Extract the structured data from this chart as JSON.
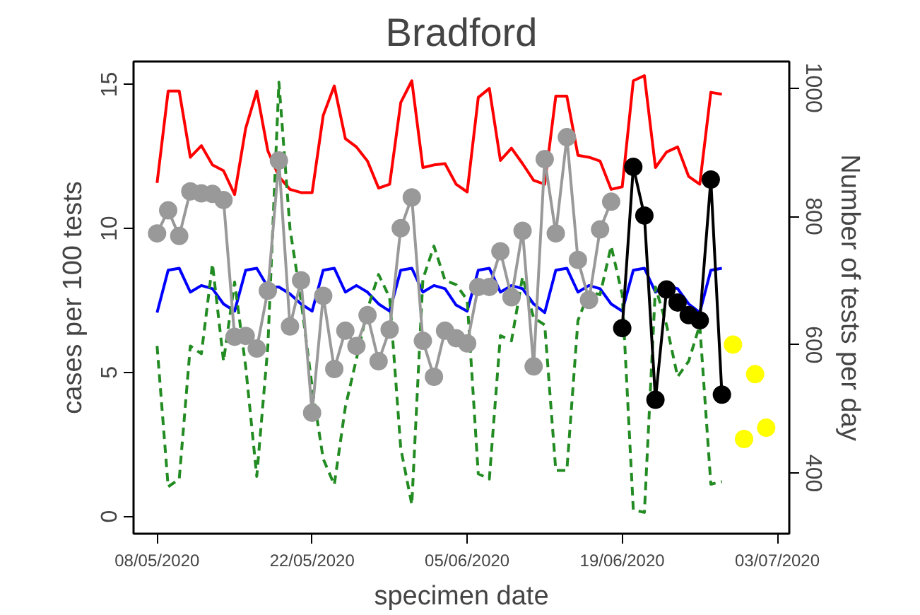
{
  "chart_data": {
    "type": "line",
    "title": "Bradford",
    "xlabel": "specimen date",
    "ylabel": "cases per 100 tests",
    "y2label": "Number of tests per day",
    "x": [
      "2020-05-08",
      "2020-05-09",
      "2020-05-10",
      "2020-05-11",
      "2020-05-12",
      "2020-05-13",
      "2020-05-14",
      "2020-05-15",
      "2020-05-16",
      "2020-05-17",
      "2020-05-18",
      "2020-05-19",
      "2020-05-20",
      "2020-05-21",
      "2020-05-22",
      "2020-05-23",
      "2020-05-24",
      "2020-05-25",
      "2020-05-26",
      "2020-05-27",
      "2020-05-28",
      "2020-05-29",
      "2020-05-30",
      "2020-05-31",
      "2020-06-01",
      "2020-06-02",
      "2020-06-03",
      "2020-06-04",
      "2020-06-05",
      "2020-06-06",
      "2020-06-07",
      "2020-06-08",
      "2020-06-09",
      "2020-06-10",
      "2020-06-11",
      "2020-06-12",
      "2020-06-13",
      "2020-06-14",
      "2020-06-15",
      "2020-06-16",
      "2020-06-17",
      "2020-06-18",
      "2020-06-19",
      "2020-06-20",
      "2020-06-21",
      "2020-06-22",
      "2020-06-23",
      "2020-06-24",
      "2020-06-25",
      "2020-06-26",
      "2020-06-27",
      "2020-06-28"
    ],
    "xlim": [
      "2020-05-05T21:00",
      "2020-07-04T02:00"
    ],
    "xticks": [
      {
        "value": "2020-05-08",
        "label": "08/05/2020"
      },
      {
        "value": "2020-05-22",
        "label": "22/05/2020"
      },
      {
        "value": "2020-06-05",
        "label": "05/06/2020"
      },
      {
        "value": "2020-06-19",
        "label": "19/06/2020"
      },
      {
        "value": "2020-07-03",
        "label": "03/07/2020"
      }
    ],
    "ylim": [
      -0.6,
      15.8
    ],
    "yticks": [
      0,
      5,
      10,
      15
    ],
    "y2lim": [
      306,
      1041
    ],
    "y2ticks": [
      400,
      600,
      800,
      1000
    ],
    "series": [
      {
        "color": "#ff0000",
        "axis": "y2",
        "values": [
          852,
          995,
          995,
          892,
          910,
          880,
          871,
          834,
          937,
          995,
          902,
          862,
          842,
          837,
          837,
          957,
          1003,
          921,
          908,
          886,
          844,
          850,
          977,
          1011,
          876,
          880,
          882,
          850,
          838,
          985,
          999,
          887,
          906,
          882,
          856,
          850,
          987,
          987,
          895,
          892,
          886,
          842,
          846,
          1011,
          1019,
          876,
          900,
          908,
          862,
          850,
          993,
          990
        ]
      },
      {
        "color": "#0000ff",
        "values": [
          7.08,
          8.55,
          8.62,
          7.79,
          8.02,
          7.91,
          7.38,
          7.13,
          8.55,
          8.62,
          7.97,
          7.97,
          7.73,
          7.38,
          7.13,
          8.55,
          8.62,
          7.79,
          8.02,
          7.79,
          7.38,
          7.13,
          8.55,
          8.62,
          7.79,
          8.02,
          7.91,
          7.34,
          7.13,
          8.55,
          8.62,
          7.79,
          8.02,
          7.91,
          7.38,
          7.08,
          8.55,
          8.62,
          7.79,
          8.02,
          7.91,
          7.38,
          7.13,
          8.55,
          8.62,
          7.79,
          8.02,
          7.91,
          7.38,
          7.08,
          8.55,
          8.62
        ]
      },
      {
        "color": "#228b22",
        "line_style": "dashed",
        "values": [
          5.92,
          1.03,
          1.3,
          5.92,
          5.65,
          8.77,
          5.39,
          8.14,
          5.2,
          1.39,
          5.9,
          15.08,
          10.0,
          7.5,
          4.5,
          2.0,
          1.1,
          3.8,
          5.47,
          7.2,
          8.4,
          7.6,
          2.37,
          0.41,
          8.24,
          9.39,
          8.2,
          8.05,
          7.52,
          1.48,
          1.3,
          6.28,
          6.1,
          8.32,
          6.9,
          6.65,
          1.6,
          1.6,
          6.8,
          7.8,
          7.7,
          9.39,
          7.7,
          0.23,
          0.14,
          7.97,
          6.65,
          4.85,
          5.39,
          6.65,
          1.12,
          1.21
        ]
      },
      {
        "color": "#999999",
        "marker": "circle",
        "x": [
          "2020-05-08",
          "2020-05-09",
          "2020-05-10",
          "2020-05-11",
          "2020-05-12",
          "2020-05-13",
          "2020-05-14",
          "2020-05-15",
          "2020-05-16",
          "2020-05-17",
          "2020-05-18",
          "2020-05-19",
          "2020-05-20",
          "2020-05-21",
          "2020-05-22",
          "2020-05-23",
          "2020-05-24",
          "2020-05-25",
          "2020-05-26",
          "2020-05-27",
          "2020-05-28",
          "2020-05-29",
          "2020-05-30",
          "2020-05-31",
          "2020-06-01",
          "2020-06-02",
          "2020-06-03",
          "2020-06-04",
          "2020-06-05",
          "2020-06-06",
          "2020-06-07",
          "2020-06-08",
          "2020-06-09",
          "2020-06-10",
          "2020-06-11",
          "2020-06-12",
          "2020-06-13",
          "2020-06-14",
          "2020-06-15",
          "2020-06-16",
          "2020-06-17",
          "2020-06-18"
        ],
        "values": [
          9.83,
          10.63,
          9.74,
          11.29,
          11.22,
          11.2,
          10.99,
          6.24,
          6.27,
          5.83,
          7.84,
          12.36,
          6.6,
          8.2,
          3.6,
          7.66,
          5.12,
          6.45,
          5.92,
          6.99,
          5.39,
          6.49,
          10.01,
          11.08,
          6.1,
          4.85,
          6.45,
          6.19,
          6.01,
          7.97,
          7.97,
          9.21,
          7.61,
          9.92,
          5.21,
          12.41,
          9.83,
          13.17,
          8.91,
          7.52,
          9.97,
          10.93
        ]
      },
      {
        "color": "#000000",
        "marker": "circle",
        "x": [
          "2020-06-19",
          "2020-06-20",
          "2020-06-21",
          "2020-06-22",
          "2020-06-23",
          "2020-06-24",
          "2020-06-25",
          "2020-06-26",
          "2020-06-27",
          "2020-06-28"
        ],
        "values": [
          6.54,
          12.14,
          10.45,
          4.05,
          7.88,
          7.43,
          6.99,
          6.81,
          11.7,
          4.23
        ]
      },
      {
        "type": "scatter",
        "color": "#ffff00",
        "marker": "circle",
        "x": [
          "2020-06-29",
          "2020-06-30",
          "2020-07-01",
          "2020-07-02"
        ],
        "values": [
          5.97,
          2.69,
          4.94,
          3.08
        ]
      }
    ]
  }
}
